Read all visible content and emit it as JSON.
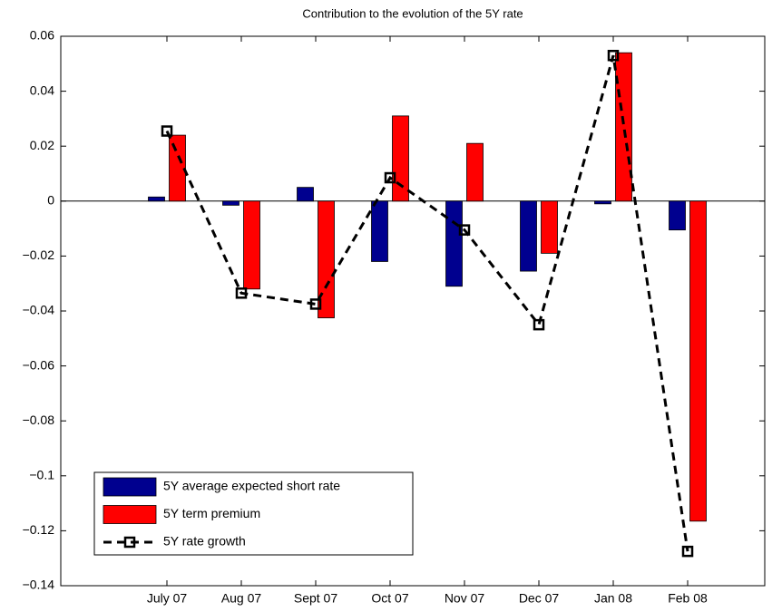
{
  "chart_data": {
    "type": "bar",
    "title": "Contribution to the evolution of the 5Y rate",
    "categories": [
      "July 07",
      "Aug 07",
      "Sept 07",
      "Oct 07",
      "Nov 07",
      "Dec 07",
      "Jan 08",
      "Feb 08"
    ],
    "series": [
      {
        "name": "5Y average expected short rate",
        "color": "#00008f",
        "type": "bar",
        "values": [
          0.0015,
          -0.0015,
          0.005,
          -0.022,
          -0.031,
          -0.0255,
          -0.001,
          -0.0105
        ]
      },
      {
        "name": "5Y term premium",
        "color": "#ff0000",
        "type": "bar",
        "values": [
          0.024,
          -0.032,
          -0.0425,
          0.031,
          0.021,
          -0.019,
          0.054,
          -0.1165
        ]
      },
      {
        "name": "5Y rate growth",
        "color": "#000000",
        "type": "line",
        "values": [
          0.0255,
          -0.0335,
          -0.0375,
          0.0085,
          -0.0105,
          -0.045,
          0.053,
          -0.1275
        ]
      }
    ],
    "ylim": [
      -0.14,
      0.06
    ],
    "yticks": [
      {
        "value": -0.14,
        "label": "−0.14"
      },
      {
        "value": -0.12,
        "label": "−0.12"
      },
      {
        "value": -0.1,
        "label": "−0.1"
      },
      {
        "value": -0.08,
        "label": "−0.08"
      },
      {
        "value": -0.06,
        "label": "−0.06"
      },
      {
        "value": -0.04,
        "label": "−0.04"
      },
      {
        "value": -0.02,
        "label": "−0.02"
      },
      0,
      0.02,
      0.04,
      0.06
    ],
    "legend": "lower left"
  }
}
